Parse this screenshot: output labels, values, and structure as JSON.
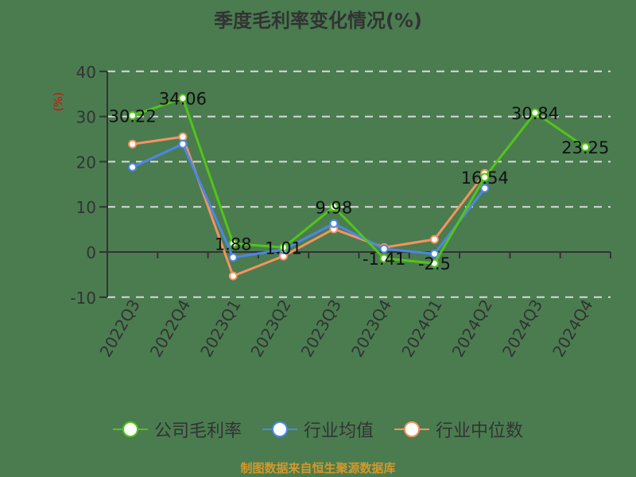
{
  "title": "季度毛利率变化情况(%)",
  "ylabel_unit": "(%)",
  "source": "制图数据来自恒生聚源数据库",
  "legend": [
    {
      "label": "公司毛利率",
      "color": "#52c41a"
    },
    {
      "label": "行业均值",
      "color": "#4e86e8"
    },
    {
      "label": "行业中位数",
      "color": "#f5935f"
    }
  ],
  "chart_data": {
    "type": "line",
    "title": "季度毛利率变化情况(%)",
    "xlabel": "",
    "ylabel": "(%)",
    "ylim": [
      -10,
      40
    ],
    "yticks": [
      -10,
      0,
      10,
      20,
      30,
      40
    ],
    "grid": true,
    "legend_position": "bottom",
    "categories": [
      "2022Q3",
      "2022Q4",
      "2023Q1",
      "2023Q2",
      "2023Q3",
      "2023Q4",
      "2024Q1",
      "2024Q2",
      "2024Q3",
      "2024Q4"
    ],
    "series": [
      {
        "name": "公司毛利率",
        "color": "#52c41a",
        "values": [
          30.22,
          34.06,
          1.88,
          1.01,
          9.98,
          -1.41,
          -2.5,
          16.54,
          30.84,
          23.25
        ],
        "labels": [
          "30.22",
          "34.06",
          "1.88",
          "1.01",
          "9.98",
          "-1.41",
          "-2.5",
          "16.54",
          "30.84",
          "23.25"
        ]
      },
      {
        "name": "行业均值",
        "color": "#4e86e8",
        "values": [
          18.8,
          23.9,
          -1.2,
          0.5,
          6.3,
          0.7,
          -0.4,
          14.1,
          null,
          null
        ]
      },
      {
        "name": "行业中位数",
        "color": "#f5935f",
        "values": [
          23.9,
          25.5,
          -5.3,
          -0.9,
          5.1,
          1.0,
          2.8,
          17.4,
          null,
          null
        ]
      }
    ]
  }
}
